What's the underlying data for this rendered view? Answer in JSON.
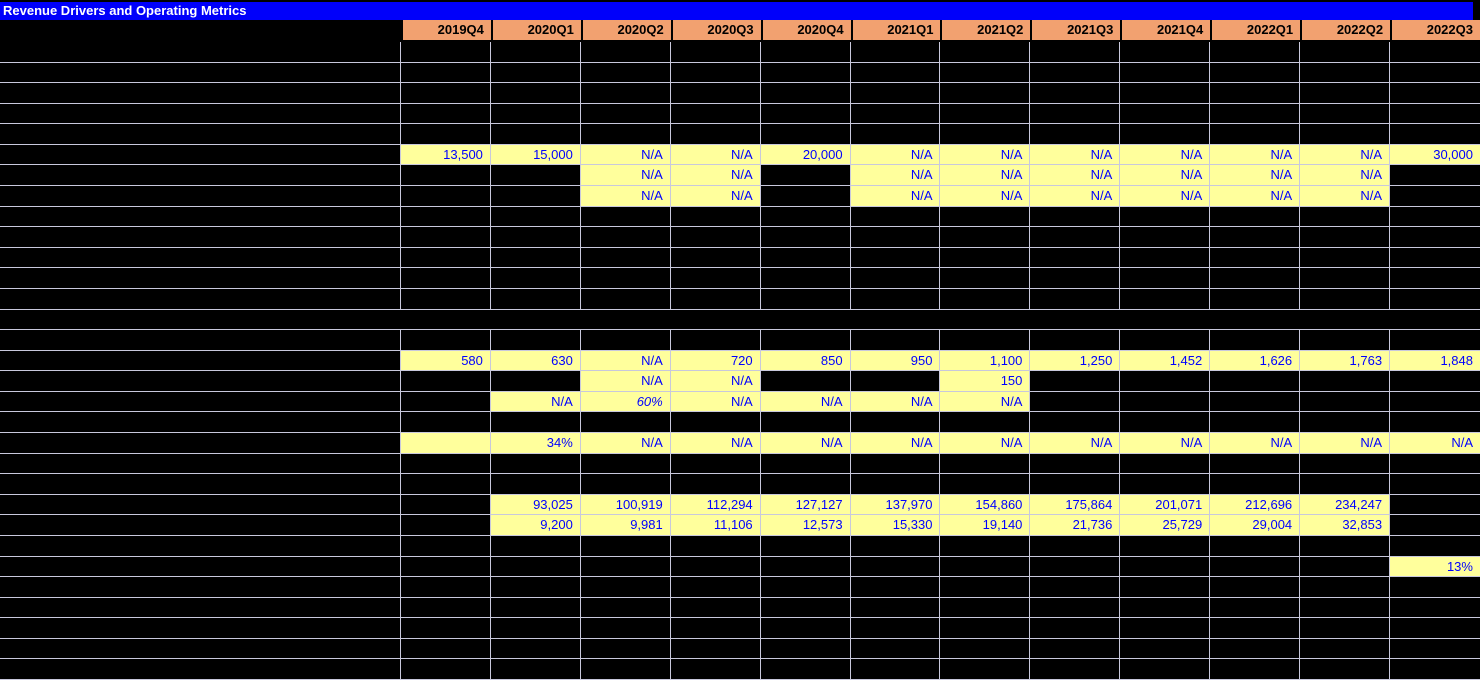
{
  "title": "Revenue Drivers and Operating Metrics",
  "colors": {
    "title_bar_bg": "#0000FA",
    "title_text": "#FFFFFF",
    "header_bg": "#F2A170",
    "header_text": "#000000",
    "cell_bg": "#000000",
    "highlight_bg": "#FFFF9C",
    "value_text": "#0000FF",
    "gridline": "#C8C8DC"
  },
  "table": {
    "label_column_width": 401,
    "quarters": [
      "2019Q4",
      "2020Q1",
      "2020Q2",
      "2020Q3",
      "2020Q4",
      "2021Q1",
      "2021Q2",
      "2021Q3",
      "2021Q4",
      "2022Q1",
      "2022Q2",
      "2022Q3"
    ],
    "rows": [
      {},
      {},
      {},
      {},
      {},
      {
        "cells": {
          "1": "13,500",
          "2": "15,000",
          "3": "N/A",
          "4": "N/A",
          "5": "20,000",
          "6": "N/A",
          "7": "N/A",
          "8": "N/A",
          "9": "N/A",
          "10": "N/A",
          "11": "N/A",
          "12": "30,000"
        }
      },
      {
        "cells": {
          "3": "N/A",
          "4": "N/A",
          "6": "N/A",
          "7": "N/A",
          "8": "N/A",
          "9": "N/A",
          "10": "N/A",
          "11": "N/A"
        }
      },
      {
        "cells": {
          "3": "N/A",
          "4": "N/A",
          "6": "N/A",
          "7": "N/A",
          "8": "N/A",
          "9": "N/A",
          "10": "N/A",
          "11": "N/A"
        }
      },
      {},
      {},
      {},
      {},
      {},
      {
        "solid": true
      },
      {},
      {
        "cells": {
          "1": "580",
          "2": "630",
          "3": "N/A",
          "4": "720",
          "5": "850",
          "6": "950",
          "7": "1,100",
          "8": "1,250",
          "9": "1,452",
          "10": "1,626",
          "11": "1,763",
          "12": "1,848"
        }
      },
      {
        "cells": {
          "3": "N/A",
          "4": "N/A",
          "7": "150"
        }
      },
      {
        "cells": {
          "2": "N/A",
          "3": "60%",
          "4": "N/A",
          "5": "N/A",
          "6": "N/A",
          "7": "N/A"
        },
        "italic": [
          "3"
        ]
      },
      {},
      {
        "cells": {
          "1": "",
          "2": "34%",
          "3": "N/A",
          "4": "N/A",
          "5": "N/A",
          "6": "N/A",
          "7": "N/A",
          "8": "N/A",
          "9": "N/A",
          "10": "N/A",
          "11": "N/A",
          "12": "N/A"
        }
      },
      {},
      {},
      {
        "cells": {
          "2": "93,025",
          "3": "100,919",
          "4": "112,294",
          "5": "127,127",
          "6": "137,970",
          "7": "154,860",
          "8": "175,864",
          "9": "201,071",
          "10": "212,696",
          "11": "234,247"
        }
      },
      {
        "cells": {
          "2": "9,200",
          "3": "9,981",
          "4": "11,106",
          "5": "12,573",
          "6": "15,330",
          "7": "19,140",
          "8": "21,736",
          "9": "25,729",
          "10": "29,004",
          "11": "32,853"
        }
      },
      {},
      {
        "cells": {
          "12": "13%"
        }
      },
      {},
      {},
      {},
      {},
      {}
    ]
  }
}
